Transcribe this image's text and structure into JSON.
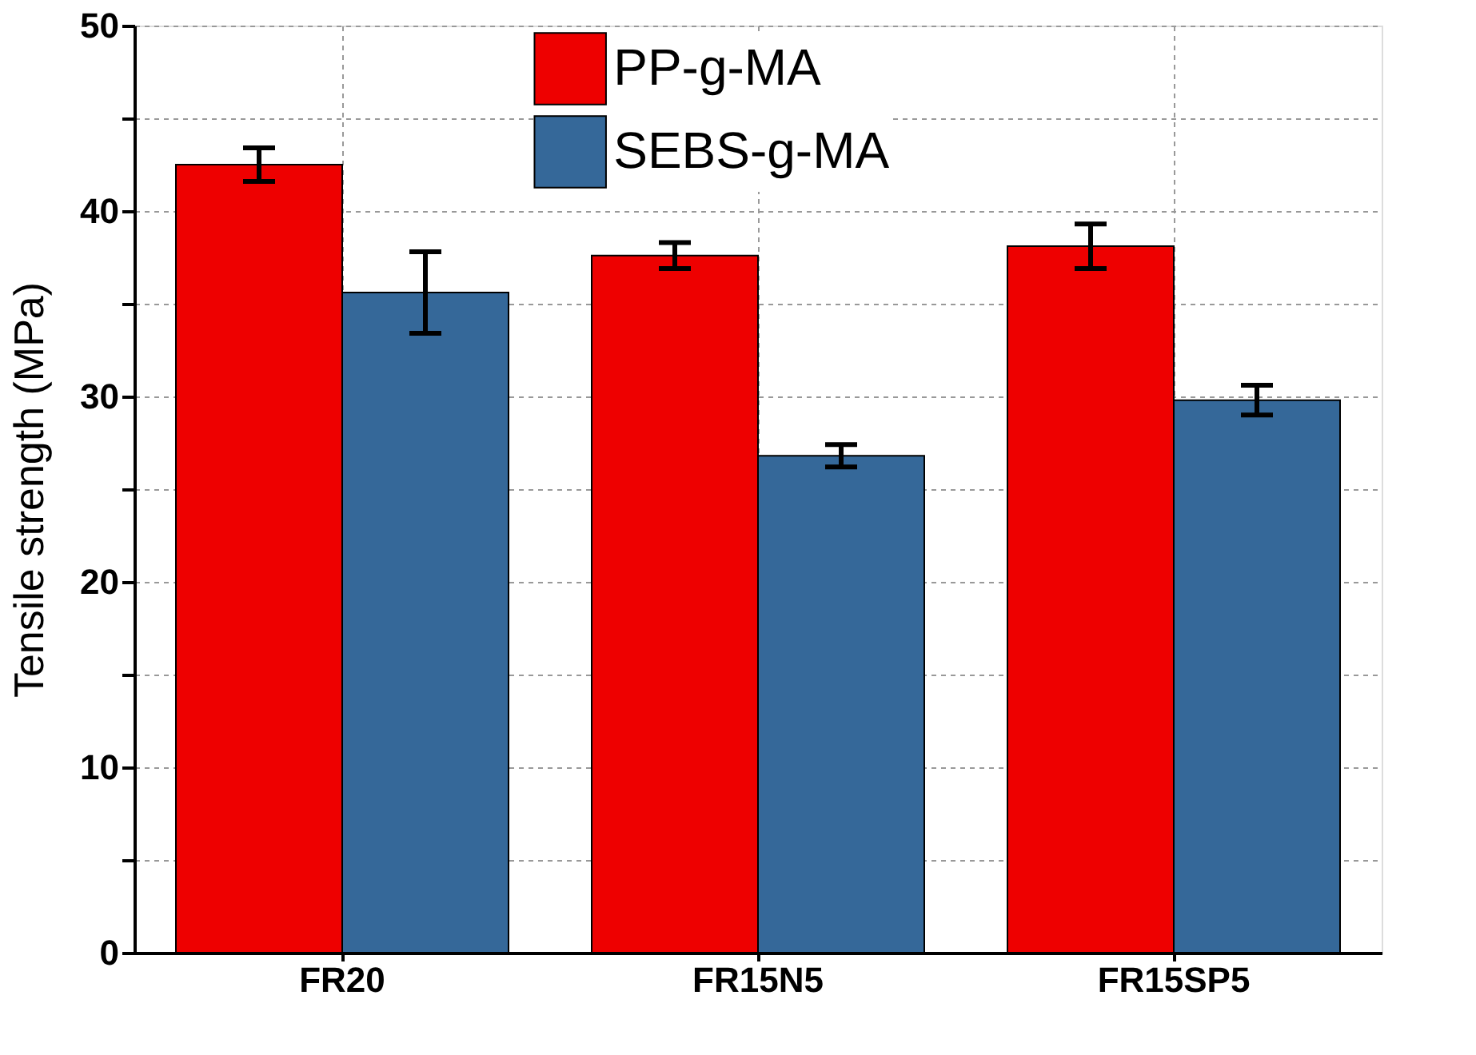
{
  "chart_data": {
    "type": "bar",
    "ylabel": "Tensile strength (MPa)",
    "categories": [
      "FR20",
      "FR15N5",
      "FR15SP5"
    ],
    "series": [
      {
        "name": "PP-g-MA",
        "color": "#ee0000",
        "values": [
          42.5,
          37.6,
          38.1
        ],
        "errors": [
          0.9,
          0.7,
          1.2
        ]
      },
      {
        "name": "SEBS-g-MA",
        "color": "#356899",
        "values": [
          35.6,
          26.8,
          29.8
        ],
        "errors": [
          2.2,
          0.6,
          0.8
        ]
      }
    ],
    "ylim": [
      0,
      50
    ],
    "yticks": [
      0,
      {
        "value": 5,
        "label": null
      },
      10,
      {
        "value": 15,
        "label": null
      },
      20,
      {
        "value": 25,
        "label": null
      },
      30,
      {
        "value": 35,
        "label": null
      },
      40,
      {
        "value": 45,
        "label": null
      },
      50
    ],
    "grid": true,
    "legend": "top"
  }
}
